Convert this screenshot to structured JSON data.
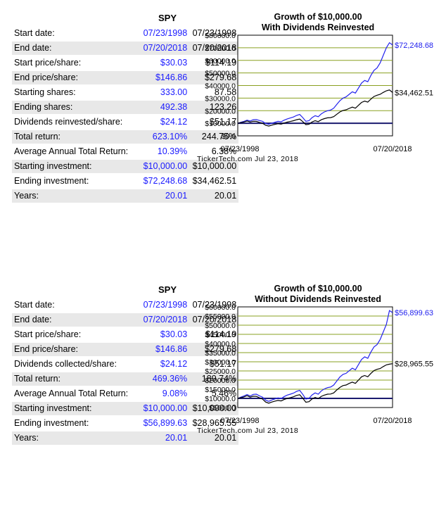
{
  "sections": [
    {
      "ticker": "SPY",
      "rows": [
        {
          "label": "Start date:",
          "v1": "07/23/1998",
          "v2": "07/23/1998"
        },
        {
          "label": "End date:",
          "v1": "07/20/2018",
          "v2": "07/20/2018"
        },
        {
          "label": "Start price/share:",
          "v1": "$30.03",
          "v2": "$114.19"
        },
        {
          "label": "End price/share:",
          "v1": "$146.86",
          "v2": "$279.68"
        },
        {
          "label": "Starting shares:",
          "v1": "333.00",
          "v2": "87.58"
        },
        {
          "label": "Ending shares:",
          "v1": "492.38",
          "v2": "123.26"
        },
        {
          "label": "Dividends reinvested/share:",
          "v1": "$24.12",
          "v2": "$51.17"
        },
        {
          "label": "Total return:",
          "v1": "623.10%",
          "v2": "244.75%"
        },
        {
          "label": "Average Annual Total Return:",
          "v1": "10.39%",
          "v2": "6.38%"
        },
        {
          "label": "Starting investment:",
          "v1": "$10,000.00",
          "v2": "$10,000.00"
        },
        {
          "label": "Ending investment:",
          "v1": "$72,248.68",
          "v2": "$34,462.51"
        },
        {
          "label": "Years:",
          "v1": "20.01",
          "v2": "20.01"
        }
      ],
      "chart_title_1": "Growth of $10,000.00",
      "chart_title_2": "With Dividends Reinvested",
      "footer": "TickerTech.com  Jul 23, 2018"
    },
    {
      "ticker": "SPY",
      "rows": [
        {
          "label": "Start date:",
          "v1": "07/23/1998",
          "v2": "07/23/1998"
        },
        {
          "label": "End date:",
          "v1": "07/20/2018",
          "v2": "07/20/2018"
        },
        {
          "label": "Start price/share:",
          "v1": "$30.03",
          "v2": "$114.19"
        },
        {
          "label": "End price/share:",
          "v1": "$146.86",
          "v2": "$279.68"
        },
        {
          "label": "Dividends collected/share:",
          "v1": "$24.12",
          "v2": "$51.17"
        },
        {
          "label": "Total return:",
          "v1": "469.36%",
          "v2": "189.74%"
        },
        {
          "label": "Average Annual Total Return:",
          "v1": "9.08%",
          "v2": "5.46%"
        },
        {
          "label": "Starting investment:",
          "v1": "$10,000.00",
          "v2": "$10,000.00"
        },
        {
          "label": "Ending investment:",
          "v1": "$56,899.63",
          "v2": "$28,965.55"
        },
        {
          "label": "Years:",
          "v1": "20.01",
          "v2": "20.01"
        }
      ],
      "chart_title_1": "Growth of $10,000.00",
      "chart_title_2": "Without Dividends Reinvested",
      "footer": "TickerTech.com  Jul 23, 2018"
    }
  ],
  "colors": {
    "blue_series": "#2222ee",
    "black_series": "#000000",
    "grid": "#8aa020",
    "plot_bg": "#ffffff"
  },
  "chart_data": [
    {
      "type": "line",
      "title": "Growth of $10,000.00 With Dividends Reinvested",
      "x_start_label": "07/23/1998",
      "x_end_label": "07/20/2018",
      "ylim": [
        0,
        80000
      ],
      "yticks": [
        "$0.0",
        "$10000.0",
        "$20000.0",
        "$30000.0",
        "$40000.0",
        "$50000.0",
        "$60000.0",
        "$70000.0",
        "$80000.0"
      ],
      "grid": true,
      "series": [
        {
          "color": "#2222ee",
          "end_label": "$72,248.68",
          "values": [
            10000,
            10800,
            11500,
            12500,
            11800,
            12800,
            13000,
            12200,
            11500,
            9800,
            9200,
            10000,
            10800,
            11500,
            11200,
            12500,
            13500,
            14200,
            15000,
            16200,
            17000,
            14500,
            11500,
            12000,
            14500,
            16000,
            15200,
            17500,
            19000,
            20000,
            20500,
            22000,
            25000,
            28000,
            30000,
            31000,
            33000,
            35000,
            34000,
            38000,
            42000,
            44000,
            43000,
            48000,
            52000,
            54000,
            58000,
            64000,
            70000,
            74000,
            72248.68
          ]
        },
        {
          "color": "#000000",
          "end_label": "$34,462.51",
          "values": [
            10000,
            10500,
            11000,
            11800,
            11000,
            11600,
            11500,
            10700,
            10000,
            8400,
            7800,
            8500,
            9100,
            9600,
            9300,
            10200,
            10900,
            11400,
            12000,
            12800,
            13300,
            11300,
            8900,
            9200,
            11000,
            12000,
            11300,
            12800,
            13700,
            14300,
            14500,
            15300,
            17200,
            19000,
            20200,
            20700,
            21800,
            22800,
            22000,
            24300,
            26600,
            27600,
            26800,
            29200,
            31300,
            32300,
            33000,
            34500,
            35800,
            36500,
            34462.51
          ]
        }
      ]
    },
    {
      "type": "line",
      "title": "Growth of $10,000.00 Without Dividends Reinvested",
      "x_start_label": "07/23/1998",
      "x_end_label": "07/20/2018",
      "ylim": [
        5000,
        60000
      ],
      "yticks": [
        "$5000.0",
        "$10000.0",
        "$15000.0",
        "$20000.0",
        "$25000.0",
        "$30000.0",
        "$35000.0",
        "$40000.0",
        "$45000.0",
        "$50000.0",
        "$55000.0",
        "$60000.0"
      ],
      "grid": true,
      "series": [
        {
          "color": "#2222ee",
          "end_label": "$56,899.63",
          "values": [
            10000,
            10700,
            11300,
            12100,
            11300,
            12200,
            12300,
            11400,
            10700,
            9000,
            8400,
            9100,
            9700,
            10300,
            9900,
            11000,
            11800,
            12300,
            12900,
            13800,
            14400,
            12200,
            9600,
            10000,
            11900,
            13000,
            12300,
            14100,
            15200,
            15900,
            16200,
            17300,
            19500,
            21700,
            23100,
            23700,
            25100,
            26500,
            25600,
            28500,
            31300,
            32700,
            31900,
            35300,
            38100,
            39400,
            42200,
            46300,
            50400,
            58000,
            56899.63
          ]
        },
        {
          "color": "#000000",
          "end_label": "$28,965.55",
          "values": [
            10000,
            10400,
            10800,
            11500,
            10700,
            11200,
            11100,
            10300,
            9600,
            8000,
            7400,
            8000,
            8500,
            8900,
            8600,
            9400,
            10000,
            10400,
            10900,
            11600,
            12000,
            10100,
            7900,
            8200,
            9700,
            10500,
            9900,
            11100,
            11800,
            12300,
            12400,
            13000,
            14600,
            16000,
            17000,
            17300,
            18200,
            18900,
            18200,
            20000,
            21800,
            22500,
            21800,
            23600,
            25200,
            25900,
            26300,
            27400,
            28300,
            28700,
            28965.55
          ]
        }
      ]
    }
  ]
}
